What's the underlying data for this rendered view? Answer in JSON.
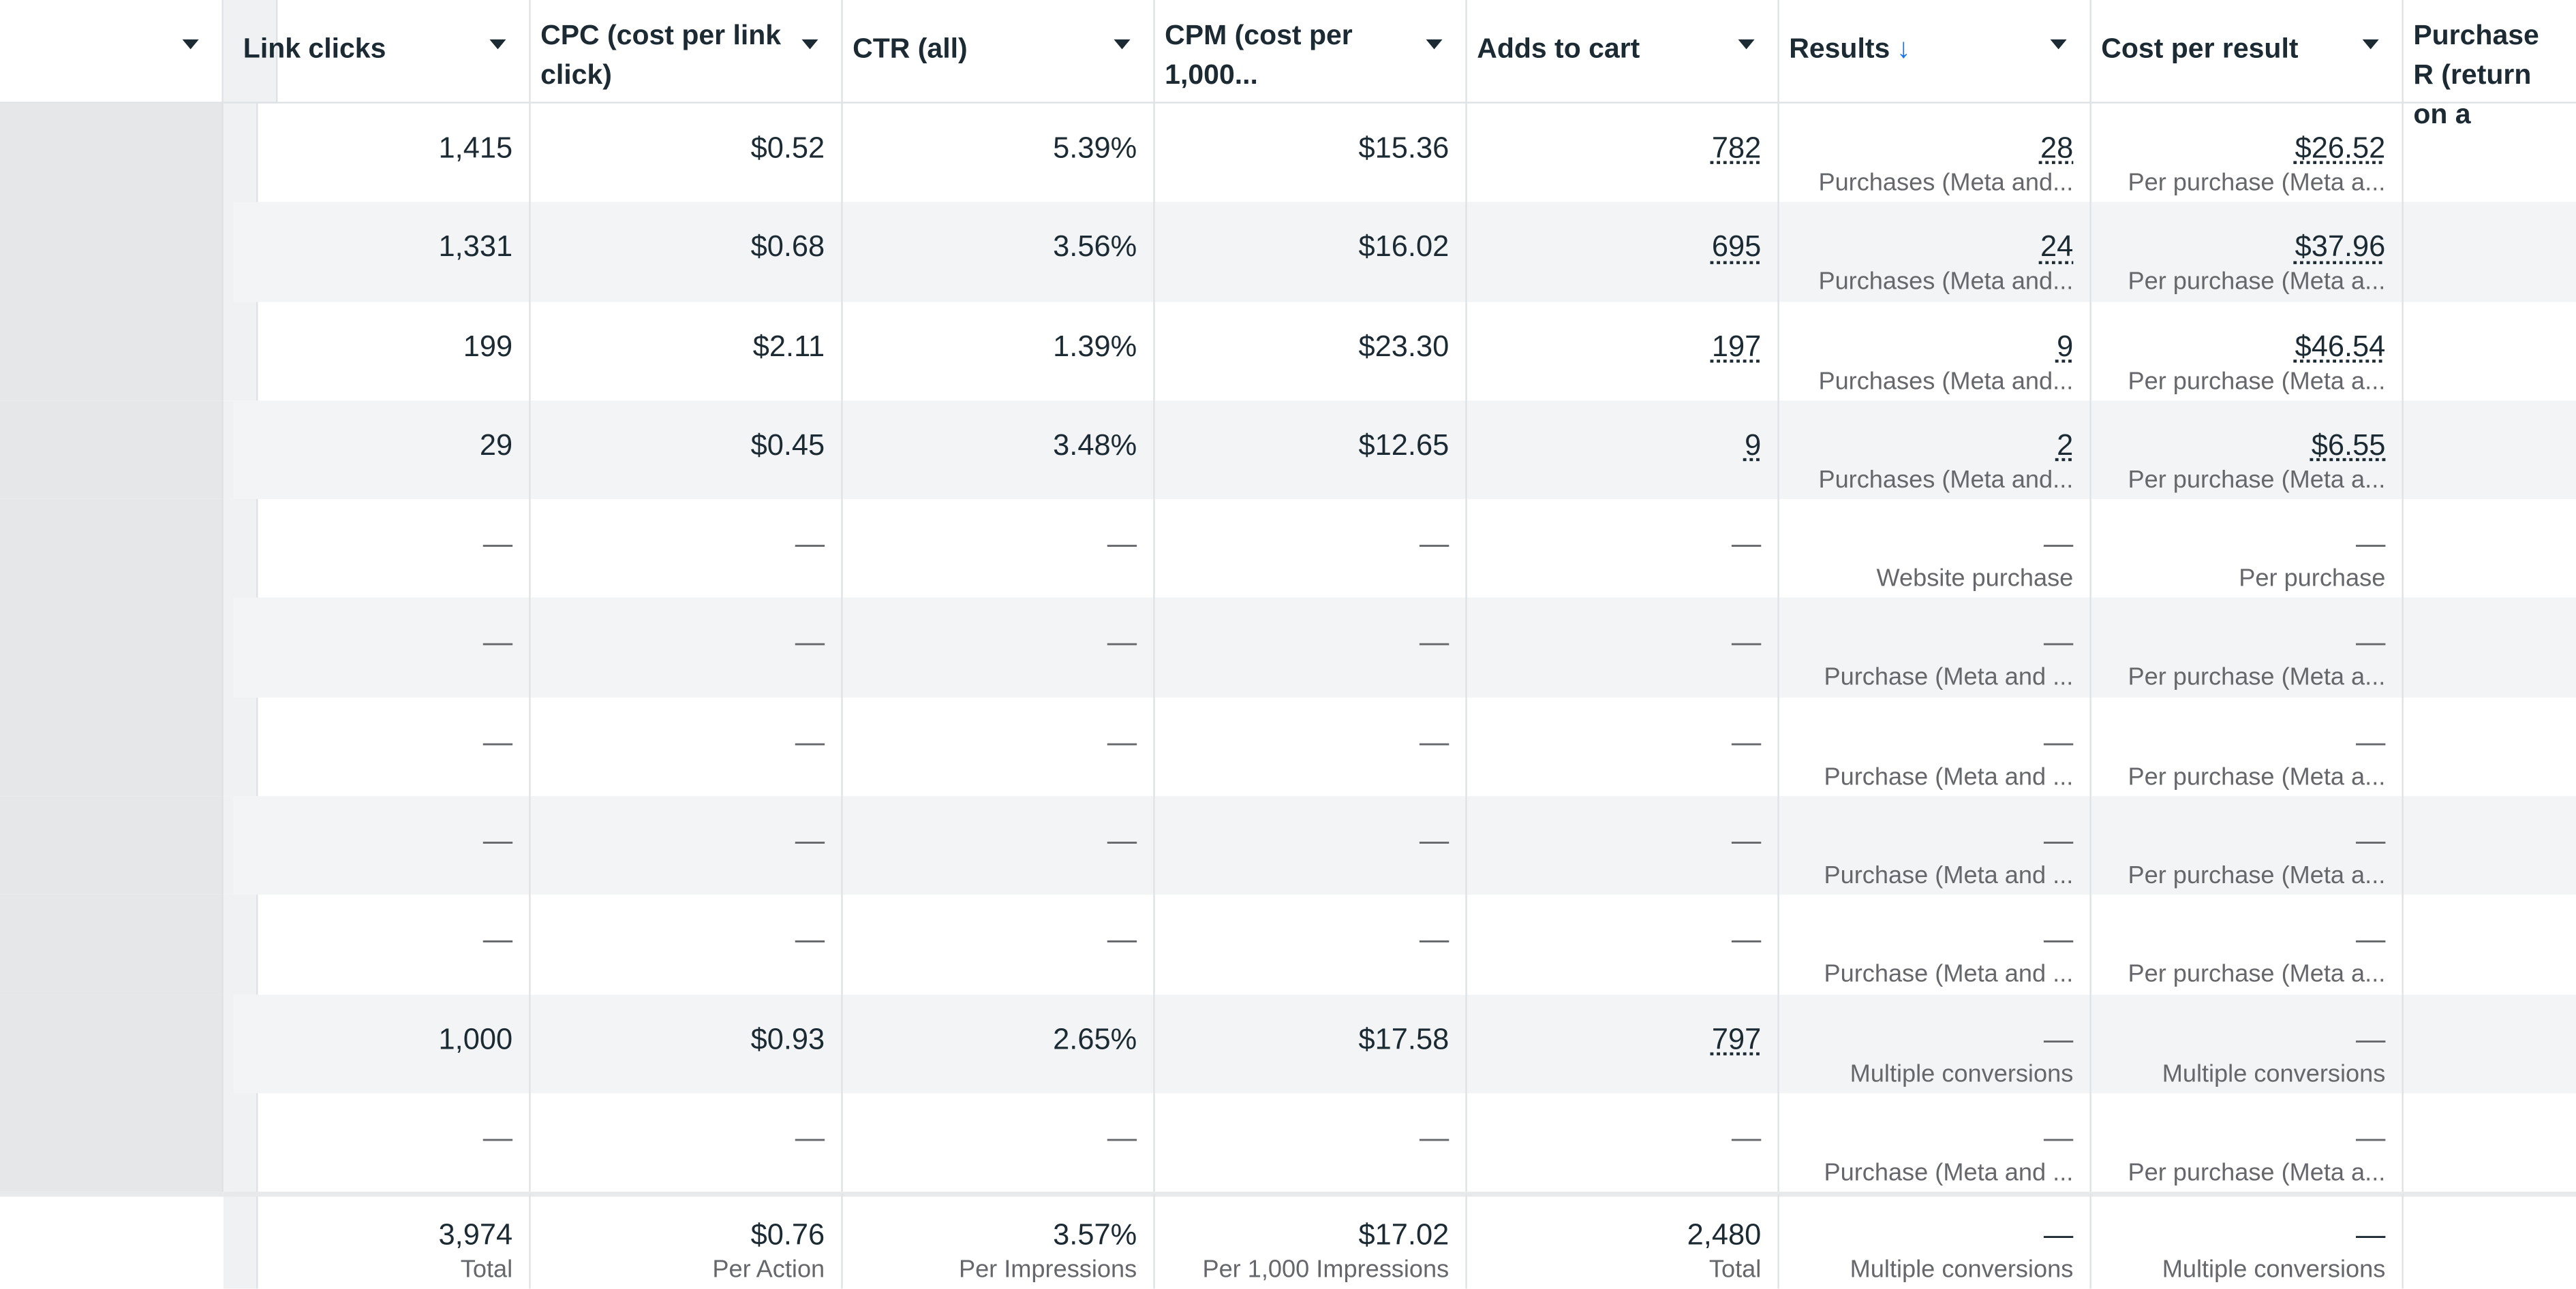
{
  "headers": [
    {
      "label": "Link clicks"
    },
    {
      "label": "CPC (cost per link click)"
    },
    {
      "label": "CTR (all)"
    },
    {
      "label": "CPM (cost per 1,000..."
    },
    {
      "label": "Adds to cart"
    },
    {
      "label": "Results",
      "sort_icon": "arrow-down-icon"
    },
    {
      "label": "Cost per result"
    },
    {
      "label": "Purchase R (return on a"
    }
  ],
  "rows": [
    {
      "link_clicks": "1,415",
      "cpc": "$0.52",
      "ctr": "5.39%",
      "cpm": "$15.36",
      "adds": "782",
      "results": "28",
      "results_sub": "Purchases (Meta and...",
      "cpr": "$26.52",
      "cpr_sub": "Per purchase (Meta a..."
    },
    {
      "link_clicks": "1,331",
      "cpc": "$0.68",
      "ctr": "3.56%",
      "cpm": "$16.02",
      "adds": "695",
      "results": "24",
      "results_sub": "Purchases (Meta and...",
      "cpr": "$37.96",
      "cpr_sub": "Per purchase (Meta a..."
    },
    {
      "link_clicks": "199",
      "cpc": "$2.11",
      "ctr": "1.39%",
      "cpm": "$23.30",
      "adds": "197",
      "results": "9",
      "results_sub": "Purchases (Meta and...",
      "cpr": "$46.54",
      "cpr_sub": "Per purchase (Meta a..."
    },
    {
      "link_clicks": "29",
      "cpc": "$0.45",
      "ctr": "3.48%",
      "cpm": "$12.65",
      "adds": "9",
      "results": "2",
      "results_sub": "Purchases (Meta and...",
      "cpr": "$6.55",
      "cpr_sub": "Per purchase (Meta a..."
    },
    {
      "link_clicks": "—",
      "cpc": "—",
      "ctr": "—",
      "cpm": "—",
      "adds": "—",
      "results": "—",
      "results_sub": "Website purchase",
      "cpr": "—",
      "cpr_sub": "Per purchase"
    },
    {
      "link_clicks": "—",
      "cpc": "—",
      "ctr": "—",
      "cpm": "—",
      "adds": "—",
      "results": "—",
      "results_sub": "Purchase (Meta and ...",
      "cpr": "—",
      "cpr_sub": "Per purchase (Meta a..."
    },
    {
      "link_clicks": "—",
      "cpc": "—",
      "ctr": "—",
      "cpm": "—",
      "adds": "—",
      "results": "—",
      "results_sub": "Purchase (Meta and ...",
      "cpr": "—",
      "cpr_sub": "Per purchase (Meta a..."
    },
    {
      "link_clicks": "—",
      "cpc": "—",
      "ctr": "—",
      "cpm": "—",
      "adds": "—",
      "results": "—",
      "results_sub": "Purchase (Meta and ...",
      "cpr": "—",
      "cpr_sub": "Per purchase (Meta a..."
    },
    {
      "link_clicks": "—",
      "cpc": "—",
      "ctr": "—",
      "cpm": "—",
      "adds": "—",
      "results": "—",
      "results_sub": "Purchase (Meta and ...",
      "cpr": "—",
      "cpr_sub": "Per purchase (Meta a..."
    },
    {
      "link_clicks": "1,000",
      "cpc": "$0.93",
      "ctr": "2.65%",
      "cpm": "$17.58",
      "adds": "797",
      "results": "—",
      "results_sub": "Multiple conversions",
      "cpr": "—",
      "cpr_sub": "Multiple conversions"
    },
    {
      "link_clicks": "—",
      "cpc": "—",
      "ctr": "—",
      "cpm": "—",
      "adds": "—",
      "results": "—",
      "results_sub": "Purchase (Meta and ...",
      "cpr": "—",
      "cpr_sub": "Per purchase (Meta a..."
    }
  ],
  "totals": {
    "link_clicks": "3,974",
    "link_clicks_sub": "Total",
    "cpc": "$0.76",
    "cpc_sub": "Per Action",
    "ctr": "3.57%",
    "ctr_sub": "Per Impressions",
    "cpm": "$17.02",
    "cpm_sub": "Per 1,000 Impressions",
    "adds": "2,480",
    "adds_sub": "Total",
    "results": "—",
    "results_sub": "Multiple conversions",
    "cpr": "—",
    "cpr_sub": "Multiple conversions"
  },
  "colors": {
    "accent": "#1877f2",
    "alt_row": "#f2f4f5",
    "text": "#1c2b33",
    "subtext": "#65676b"
  }
}
